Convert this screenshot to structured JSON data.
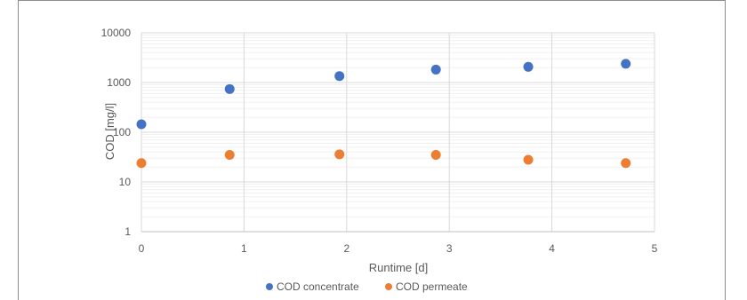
{
  "chart_data": {
    "type": "scatter",
    "xlabel": "Runtime [d]",
    "ylabel": "COD [mg/l]",
    "xlim": [
      0,
      5
    ],
    "ylim": [
      1,
      10000
    ],
    "yscale": "log",
    "grid": true,
    "legend_position": "bottom",
    "x_ticks": [
      "0",
      "1",
      "2",
      "3",
      "4",
      "5"
    ],
    "y_ticks": [
      "1",
      "10",
      "100",
      "1000",
      "10000"
    ],
    "series": [
      {
        "name": "COD concentrate",
        "color": "#4472c4",
        "x": [
          0.0,
          0.86,
          1.93,
          2.87,
          3.77,
          4.72
        ],
        "y": [
          145,
          740,
          1350,
          1820,
          2070,
          2380
        ]
      },
      {
        "name": "COD permeate",
        "color": "#ed7d31",
        "x": [
          0.0,
          0.86,
          1.93,
          2.87,
          3.77,
          4.72
        ],
        "y": [
          24,
          35,
          36,
          35,
          28,
          24
        ]
      }
    ]
  }
}
